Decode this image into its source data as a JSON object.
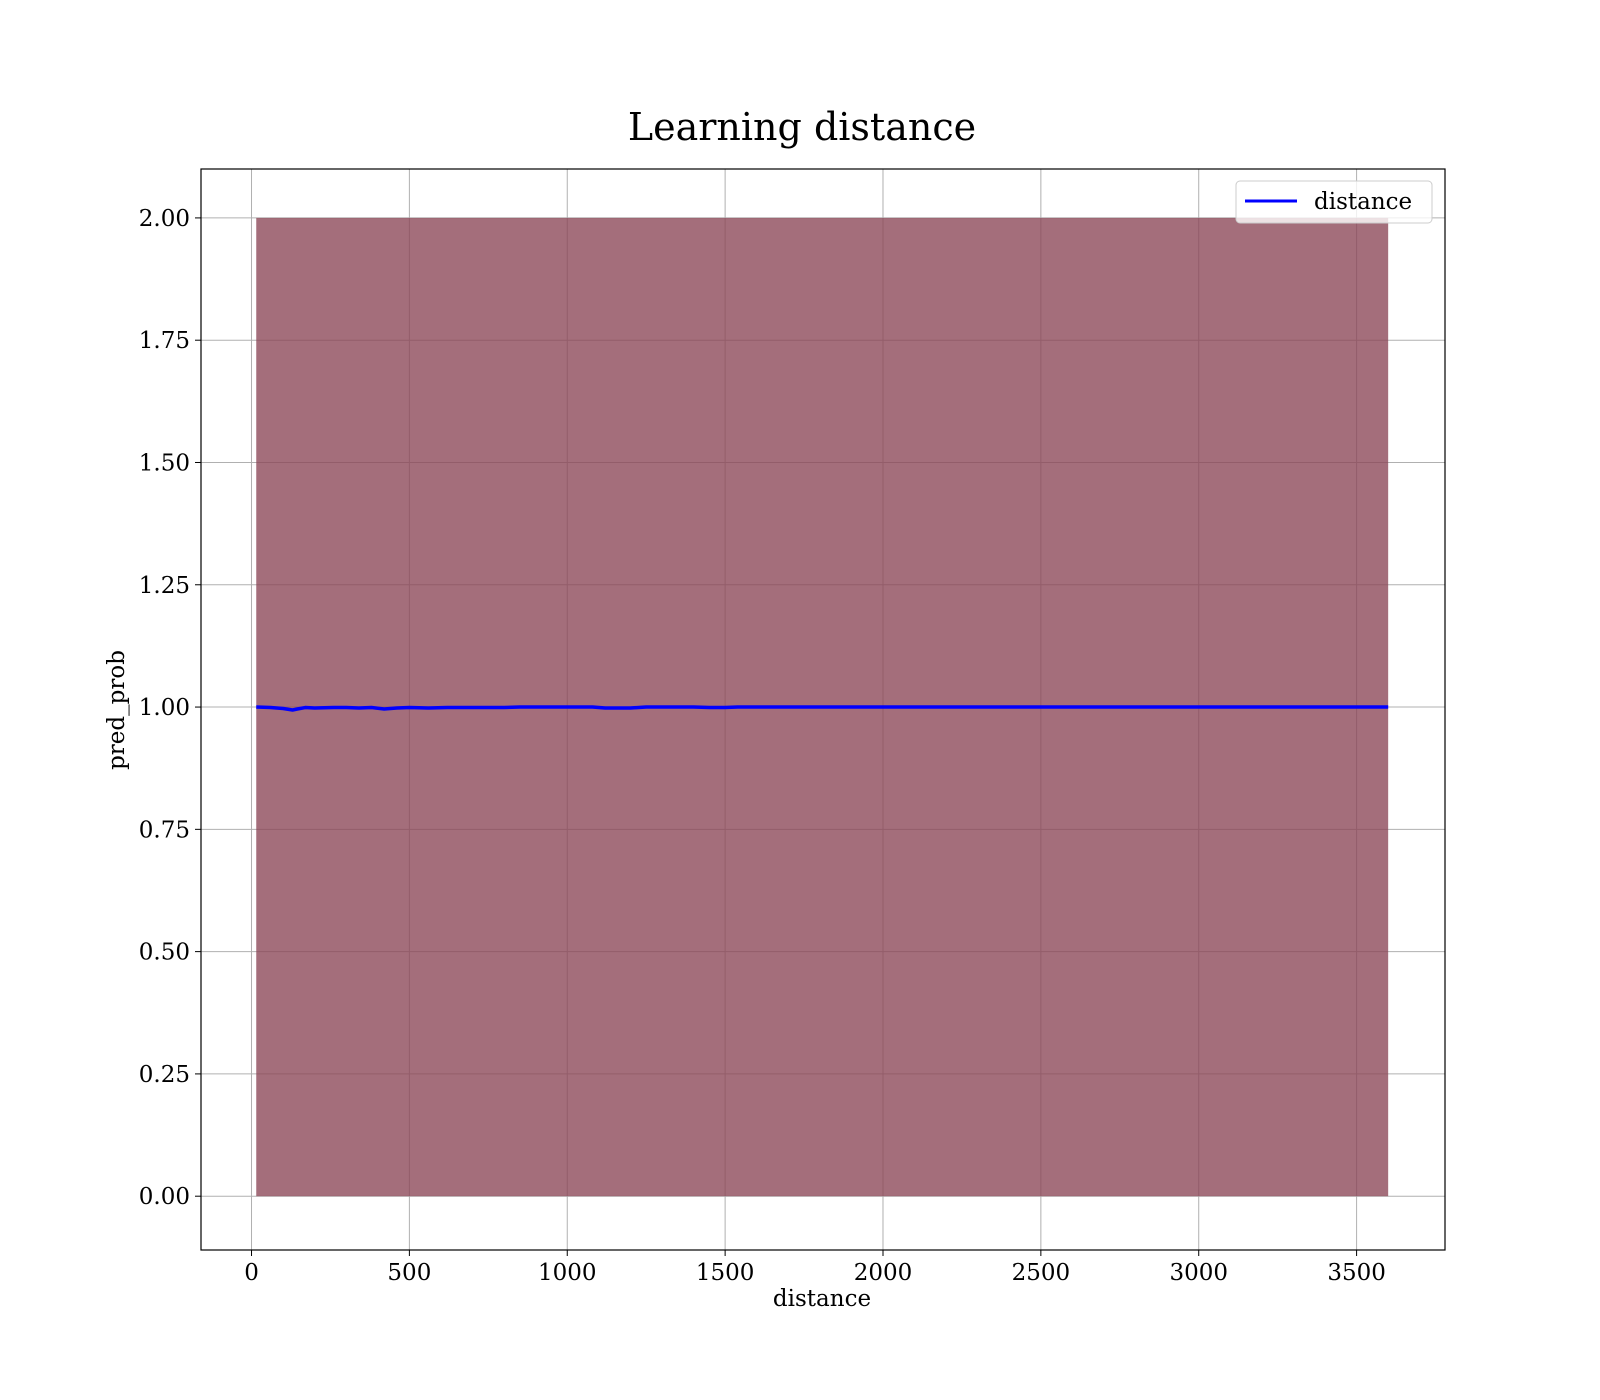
{
  "chart_data": {
    "type": "line",
    "title": "Learning distance",
    "xlabel": "distance",
    "ylabel": "pred_prob",
    "xlim": [
      -160,
      3780
    ],
    "ylim": [
      -0.11,
      2.1
    ],
    "xticks": [
      0,
      500,
      1000,
      1500,
      2000,
      2500,
      3000,
      3500
    ],
    "yticks": [
      0.0,
      0.25,
      0.5,
      0.75,
      1.0,
      1.25,
      1.5,
      1.75,
      2.0
    ],
    "grid": true,
    "legend_position": "top-right",
    "series": [
      {
        "name": "distance",
        "color": "#0000ff",
        "x": [
          15,
          60,
          100,
          130,
          145,
          170,
          200,
          260,
          300,
          340,
          380,
          420,
          460,
          500,
          560,
          620,
          700,
          760,
          800,
          850,
          900,
          1000,
          1080,
          1120,
          1200,
          1250,
          1300,
          1400,
          1450,
          1500,
          1540,
          1600,
          2000,
          2500,
          3000,
          3500,
          3600
        ],
        "y": [
          1.0,
          0.999,
          0.997,
          0.994,
          0.996,
          0.999,
          0.998,
          0.999,
          0.999,
          0.998,
          0.999,
          0.996,
          0.998,
          0.999,
          0.998,
          0.999,
          0.999,
          0.999,
          0.999,
          1.0,
          1.0,
          1.0,
          1.0,
          0.998,
          0.998,
          1.0,
          1.0,
          1.0,
          0.999,
          0.999,
          1.0,
          1.0,
          1.0,
          1.0,
          1.0,
          1.0,
          1.0
        ]
      }
    ],
    "band": {
      "color": "#8b4556",
      "opacity": 0.78,
      "x": [
        15,
        3600
      ],
      "lower": 0.0,
      "upper": 2.0
    }
  }
}
